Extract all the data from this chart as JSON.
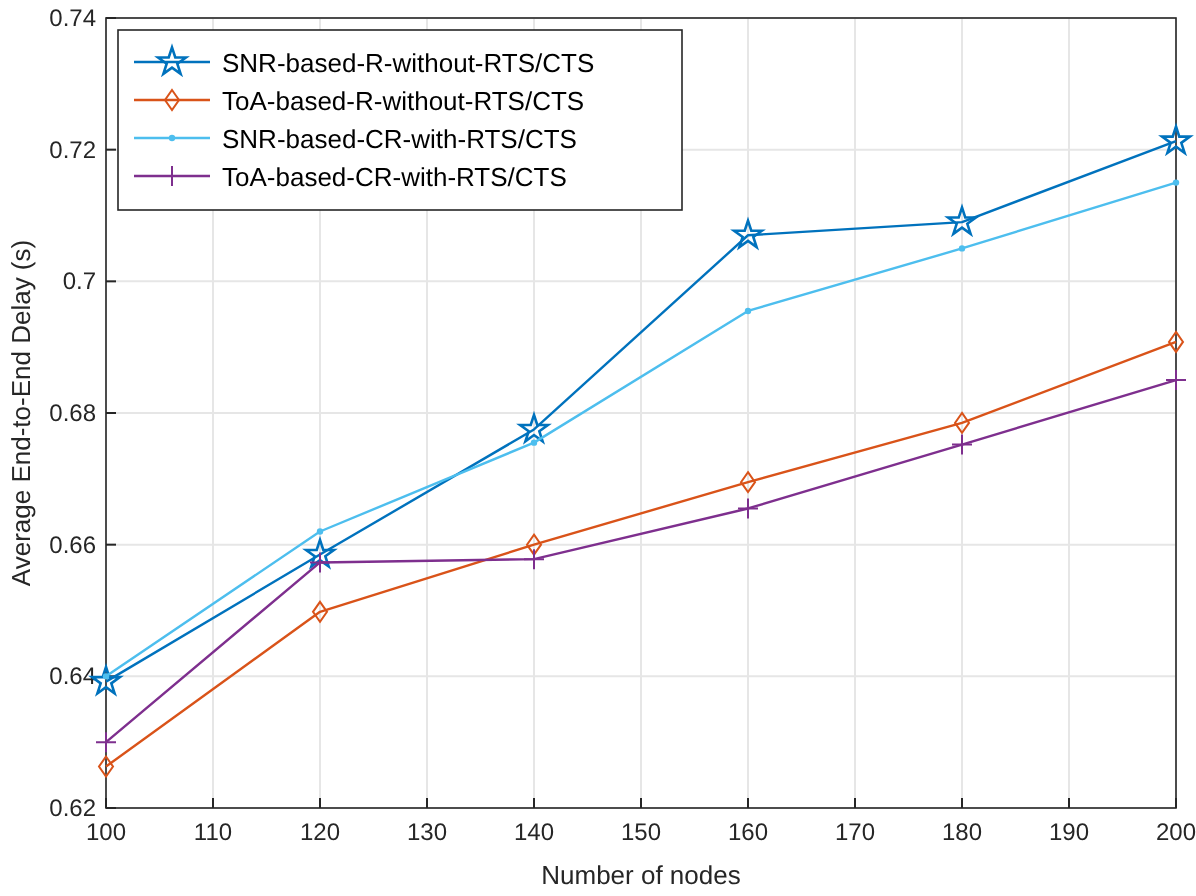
{
  "chart_data": {
    "type": "line",
    "xlabel": "Number of nodes",
    "ylabel": "Average End-to-End Delay (s)",
    "x": [
      100,
      120,
      140,
      160,
      180,
      200
    ],
    "series": [
      {
        "name": "SNR-based-R-without-RTS/CTS",
        "color": "#0072bd",
        "marker": "star",
        "values": [
          0.6392,
          0.6585,
          0.6775,
          0.707,
          0.709,
          0.7213
        ]
      },
      {
        "name": "ToA-based-R-without-RTS/CTS",
        "color": "#d95319",
        "marker": "diamond",
        "values": [
          0.6263,
          0.6498,
          0.66,
          0.6695,
          0.6785,
          0.6908
        ]
      },
      {
        "name": "SNR-based-CR-with-RTS/CTS",
        "color": "#4dbeee",
        "marker": "circle",
        "values": [
          0.64,
          0.662,
          0.6755,
          0.6955,
          0.705,
          0.715
        ]
      },
      {
        "name": "ToA-based-CR-with-RTS/CTS",
        "color": "#7e2f8e",
        "marker": "cross",
        "values": [
          0.63,
          0.6573,
          0.6578,
          0.6655,
          0.6752,
          0.685
        ]
      }
    ],
    "xlim": [
      100,
      200
    ],
    "xticks": [
      100,
      110,
      120,
      130,
      140,
      150,
      160,
      170,
      180,
      190,
      200
    ],
    "ylim": [
      0.62,
      0.74
    ],
    "yticks": [
      0.62,
      0.64,
      0.66,
      0.68,
      0.7,
      0.72,
      0.74
    ],
    "grid": true,
    "legend": "top left"
  }
}
